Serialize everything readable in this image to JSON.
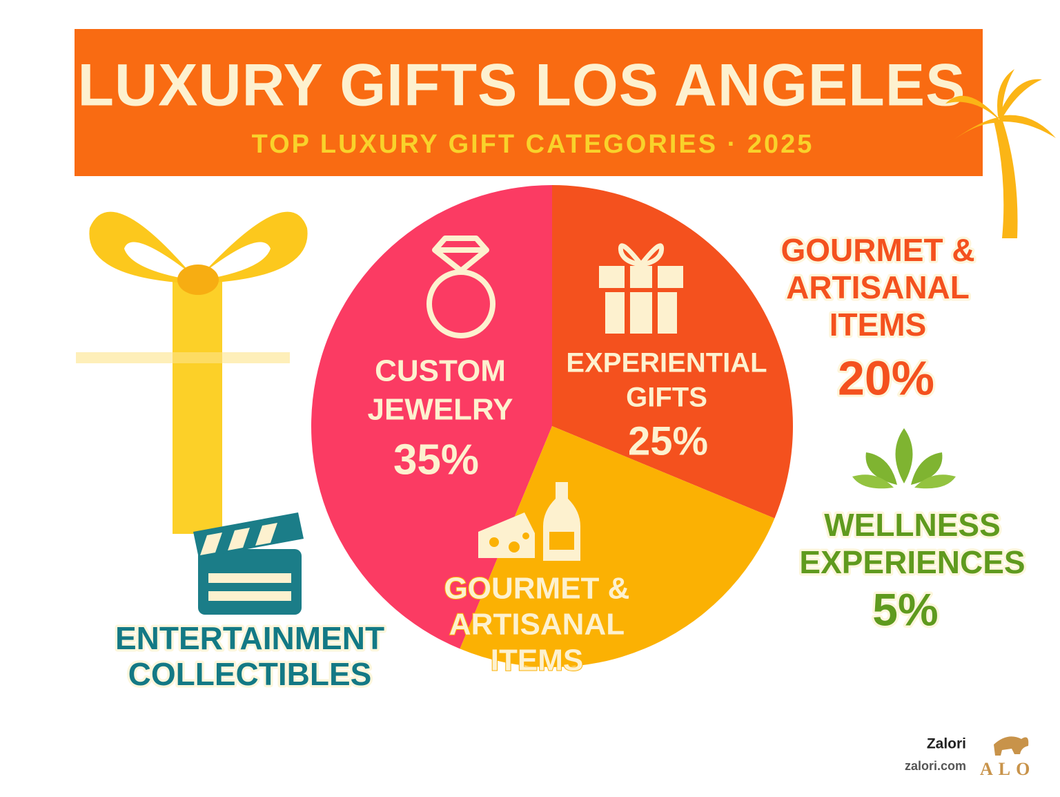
{
  "chart_data": {
    "type": "pie",
    "title": "LUXURY GIFTS LOS ANGELES",
    "subtitle": "TOP LUXURY GIFT CATEGORIES · 2025",
    "categories": [
      [
        "CUSTOM",
        "JEWELRY"
      ],
      [
        "EXPERIENTIAL",
        "GIFTS"
      ],
      [
        "GOURMET &",
        "ARTISANAL",
        "ITEMS"
      ]
    ],
    "values": [
      35,
      25,
      20
    ],
    "value_labels": [
      "35%",
      "25%",
      "20%"
    ],
    "colors": [
      "#fb3b63",
      "#f4511e",
      "#fbb103"
    ],
    "callouts": [
      {
        "label": [
          "WELLNESS",
          "EXPERIENCES"
        ],
        "value": 5,
        "value_label": "5%",
        "color": "#5f9a1e"
      },
      {
        "label": [
          "ENTERTAINMENT",
          "COLLECTIBLES"
        ],
        "color": "#137985"
      }
    ],
    "footer": {
      "brand": "Zalori",
      "url": "zalori.com",
      "logo": "ALO"
    }
  }
}
